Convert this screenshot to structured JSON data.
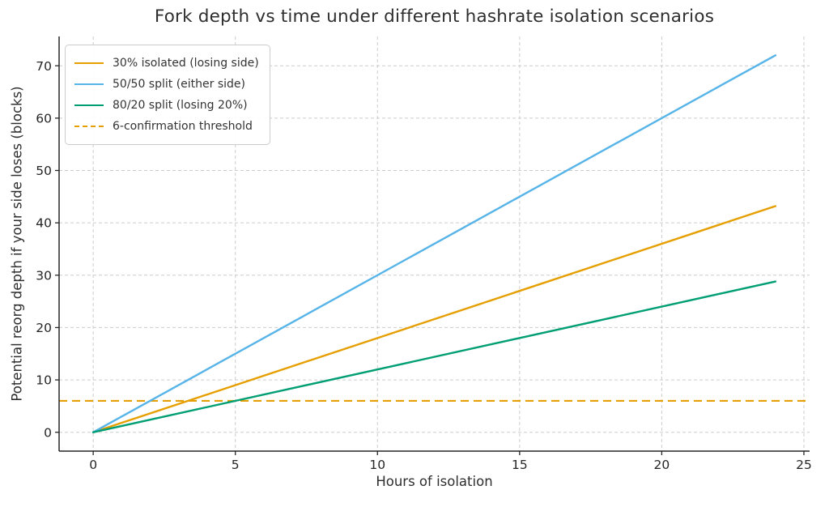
{
  "chart_data": {
    "type": "line",
    "title": "Fork depth vs time under different hashrate isolation scenarios",
    "xlabel": "Hours of isolation",
    "ylabel": "Potential reorg depth if your side loses (blocks)",
    "xlim": [
      -1.2,
      25.2
    ],
    "ylim": [
      -3.6,
      75.6
    ],
    "xticks": [
      0,
      5,
      10,
      15,
      20,
      25
    ],
    "yticks": [
      0,
      10,
      20,
      30,
      40,
      50,
      60,
      70
    ],
    "grid": true,
    "grid_color": "#cccccc",
    "legend_position": "upper-left",
    "axis_color": "#262626",
    "series": [
      {
        "name": "30% isolated (losing side)",
        "color": "#E69F00",
        "style": "solid",
        "x": [
          0,
          24
        ],
        "y": [
          0,
          43.2
        ]
      },
      {
        "name": "50/50 split (either side)",
        "color": "#56B4E9",
        "style": "solid",
        "x": [
          0,
          24
        ],
        "y": [
          0,
          72
        ]
      },
      {
        "name": "80/20 split (losing 20%)",
        "color": "#009E73",
        "style": "solid",
        "x": [
          0,
          24
        ],
        "y": [
          0,
          28.8
        ]
      },
      {
        "name": "6-confirmation threshold",
        "color": "#E69F00",
        "style": "dashed",
        "kind": "hline",
        "y_value": 6
      }
    ]
  }
}
